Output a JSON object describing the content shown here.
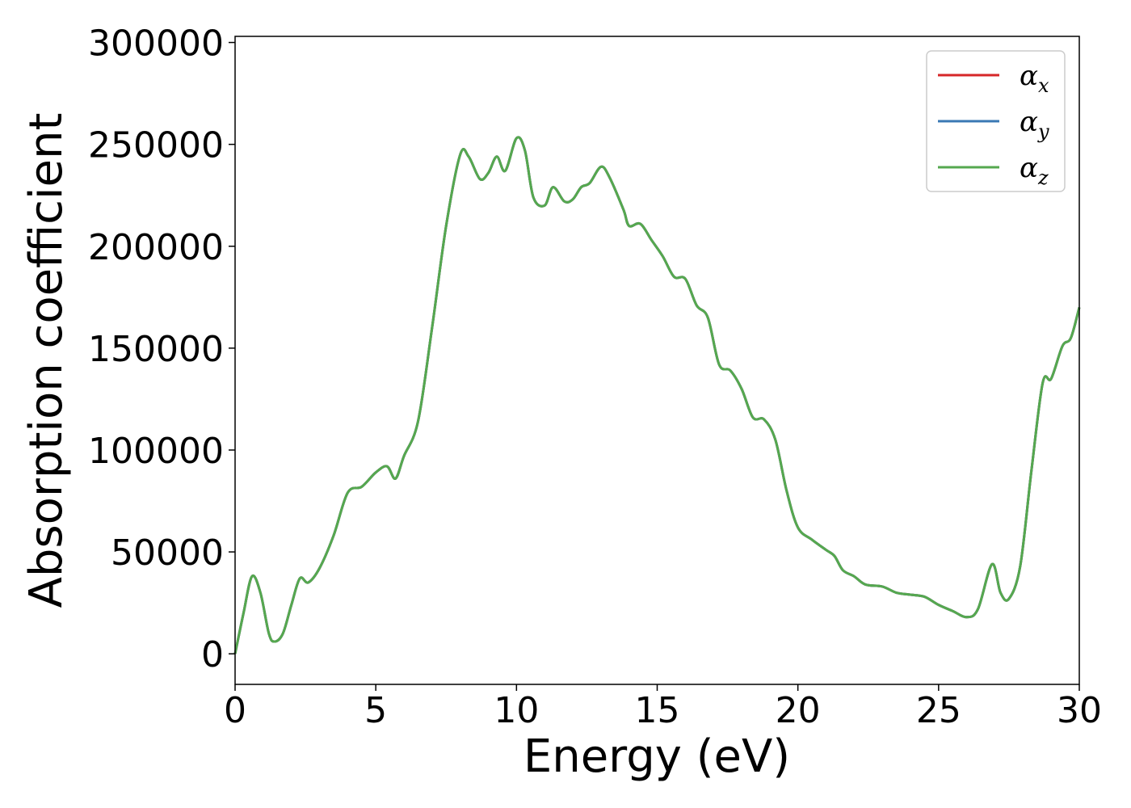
{
  "chart_data": {
    "type": "line",
    "xlabel": "Energy (eV)",
    "ylabel": "Absorption coefficient",
    "xlim": [
      0,
      30
    ],
    "ylim": [
      -15000,
      303000
    ],
    "x_ticks": [
      0,
      5,
      10,
      15,
      20,
      25,
      30
    ],
    "x_tick_labels": [
      "0",
      "5",
      "10",
      "15",
      "20",
      "25",
      "30"
    ],
    "y_ticks": [
      0,
      50000,
      100000,
      150000,
      200000,
      250000,
      300000
    ],
    "y_tick_labels": [
      "0",
      "50000",
      "100000",
      "150000",
      "200000",
      "250000",
      "300000"
    ],
    "grid": false,
    "legend_position": "top-right",
    "series": [
      {
        "name": "α",
        "subscript": "x",
        "color": "#d62728",
        "points": [
          [
            0,
            0
          ],
          [
            0.3,
            20000
          ],
          [
            0.6,
            38000
          ],
          [
            0.9,
            30000
          ],
          [
            1.2,
            10000
          ],
          [
            1.4,
            6000
          ],
          [
            1.7,
            10000
          ],
          [
            2.0,
            24000
          ],
          [
            2.3,
            37000
          ],
          [
            2.6,
            35000
          ],
          [
            3.0,
            42000
          ],
          [
            3.5,
            58000
          ],
          [
            4.0,
            79000
          ],
          [
            4.5,
            82000
          ],
          [
            5.0,
            89000
          ],
          [
            5.4,
            92000
          ],
          [
            5.7,
            86000
          ],
          [
            6.0,
            97000
          ],
          [
            6.5,
            114000
          ],
          [
            7.0,
            160000
          ],
          [
            7.5,
            210000
          ],
          [
            8.0,
            245000
          ],
          [
            8.3,
            244000
          ],
          [
            8.7,
            233000
          ],
          [
            9.0,
            236000
          ],
          [
            9.3,
            244000
          ],
          [
            9.6,
            237000
          ],
          [
            10.0,
            253000
          ],
          [
            10.3,
            247000
          ],
          [
            10.6,
            224000
          ],
          [
            11.0,
            220000
          ],
          [
            11.3,
            229000
          ],
          [
            11.7,
            222000
          ],
          [
            12.0,
            223000
          ],
          [
            12.3,
            229000
          ],
          [
            12.6,
            231000
          ],
          [
            13.0,
            239000
          ],
          [
            13.3,
            234000
          ],
          [
            13.8,
            218000
          ],
          [
            14.0,
            210000
          ],
          [
            14.4,
            211000
          ],
          [
            14.8,
            203000
          ],
          [
            15.2,
            195000
          ],
          [
            15.6,
            185000
          ],
          [
            16.0,
            184000
          ],
          [
            16.4,
            171000
          ],
          [
            16.8,
            165000
          ],
          [
            17.2,
            142000
          ],
          [
            17.6,
            139000
          ],
          [
            18.0,
            130000
          ],
          [
            18.4,
            116000
          ],
          [
            18.8,
            115000
          ],
          [
            19.2,
            105000
          ],
          [
            19.6,
            80000
          ],
          [
            20.0,
            62000
          ],
          [
            20.5,
            56000
          ],
          [
            21.0,
            51000
          ],
          [
            21.3,
            48000
          ],
          [
            21.6,
            41000
          ],
          [
            22.0,
            38000
          ],
          [
            22.4,
            34000
          ],
          [
            23.0,
            33000
          ],
          [
            23.5,
            30000
          ],
          [
            24.0,
            29000
          ],
          [
            24.5,
            28000
          ],
          [
            25.0,
            24000
          ],
          [
            25.5,
            21000
          ],
          [
            26.0,
            18000
          ],
          [
            26.4,
            22000
          ],
          [
            26.9,
            44000
          ],
          [
            27.2,
            30000
          ],
          [
            27.5,
            27000
          ],
          [
            27.9,
            43000
          ],
          [
            28.3,
            90000
          ],
          [
            28.7,
            133000
          ],
          [
            29.0,
            135000
          ],
          [
            29.4,
            151000
          ],
          [
            29.7,
            155000
          ],
          [
            30.0,
            170000
          ]
        ]
      },
      {
        "name": "α",
        "subscript": "y",
        "color": "#3a78b4",
        "points": [
          [
            0,
            0
          ],
          [
            0.3,
            20000
          ],
          [
            0.6,
            38000
          ],
          [
            0.9,
            30000
          ],
          [
            1.2,
            10000
          ],
          [
            1.4,
            6000
          ],
          [
            1.7,
            10000
          ],
          [
            2.0,
            24000
          ],
          [
            2.3,
            37000
          ],
          [
            2.6,
            35000
          ],
          [
            3.0,
            42000
          ],
          [
            3.5,
            58000
          ],
          [
            4.0,
            79000
          ],
          [
            4.5,
            82000
          ],
          [
            5.0,
            89000
          ],
          [
            5.4,
            92000
          ],
          [
            5.7,
            86000
          ],
          [
            6.0,
            97000
          ],
          [
            6.5,
            114000
          ],
          [
            7.0,
            160000
          ],
          [
            7.5,
            210000
          ],
          [
            8.0,
            245000
          ],
          [
            8.3,
            244000
          ],
          [
            8.7,
            233000
          ],
          [
            9.0,
            236000
          ],
          [
            9.3,
            244000
          ],
          [
            9.6,
            237000
          ],
          [
            10.0,
            253000
          ],
          [
            10.3,
            247000
          ],
          [
            10.6,
            224000
          ],
          [
            11.0,
            220000
          ],
          [
            11.3,
            229000
          ],
          [
            11.7,
            222000
          ],
          [
            12.0,
            223000
          ],
          [
            12.3,
            229000
          ],
          [
            12.6,
            231000
          ],
          [
            13.0,
            239000
          ],
          [
            13.3,
            234000
          ],
          [
            13.8,
            218000
          ],
          [
            14.0,
            210000
          ],
          [
            14.4,
            211000
          ],
          [
            14.8,
            203000
          ],
          [
            15.2,
            195000
          ],
          [
            15.6,
            185000
          ],
          [
            16.0,
            184000
          ],
          [
            16.4,
            171000
          ],
          [
            16.8,
            165000
          ],
          [
            17.2,
            142000
          ],
          [
            17.6,
            139000
          ],
          [
            18.0,
            130000
          ],
          [
            18.4,
            116000
          ],
          [
            18.8,
            115000
          ],
          [
            19.2,
            105000
          ],
          [
            19.6,
            80000
          ],
          [
            20.0,
            62000
          ],
          [
            20.5,
            56000
          ],
          [
            21.0,
            51000
          ],
          [
            21.3,
            48000
          ],
          [
            21.6,
            41000
          ],
          [
            22.0,
            38000
          ],
          [
            22.4,
            34000
          ],
          [
            23.0,
            33000
          ],
          [
            23.5,
            30000
          ],
          [
            24.0,
            29000
          ],
          [
            24.5,
            28000
          ],
          [
            25.0,
            24000
          ],
          [
            25.5,
            21000
          ],
          [
            26.0,
            18000
          ],
          [
            26.4,
            22000
          ],
          [
            26.9,
            44000
          ],
          [
            27.2,
            30000
          ],
          [
            27.5,
            27000
          ],
          [
            27.9,
            43000
          ],
          [
            28.3,
            90000
          ],
          [
            28.7,
            133000
          ],
          [
            29.0,
            135000
          ],
          [
            29.4,
            151000
          ],
          [
            29.7,
            155000
          ],
          [
            30.0,
            170000
          ]
        ]
      },
      {
        "name": "α",
        "subscript": "z",
        "color": "#55a84f",
        "points": [
          [
            0,
            0
          ],
          [
            0.3,
            20000
          ],
          [
            0.6,
            38000
          ],
          [
            0.9,
            30000
          ],
          [
            1.2,
            10000
          ],
          [
            1.4,
            6000
          ],
          [
            1.7,
            10000
          ],
          [
            2.0,
            24000
          ],
          [
            2.3,
            37000
          ],
          [
            2.6,
            35000
          ],
          [
            3.0,
            42000
          ],
          [
            3.5,
            58000
          ],
          [
            4.0,
            79000
          ],
          [
            4.5,
            82000
          ],
          [
            5.0,
            89000
          ],
          [
            5.4,
            92000
          ],
          [
            5.7,
            86000
          ],
          [
            6.0,
            97000
          ],
          [
            6.5,
            114000
          ],
          [
            7.0,
            160000
          ],
          [
            7.5,
            210000
          ],
          [
            8.0,
            245000
          ],
          [
            8.3,
            244000
          ],
          [
            8.7,
            233000
          ],
          [
            9.0,
            236000
          ],
          [
            9.3,
            244000
          ],
          [
            9.6,
            237000
          ],
          [
            10.0,
            253000
          ],
          [
            10.3,
            247000
          ],
          [
            10.6,
            224000
          ],
          [
            11.0,
            220000
          ],
          [
            11.3,
            229000
          ],
          [
            11.7,
            222000
          ],
          [
            12.0,
            223000
          ],
          [
            12.3,
            229000
          ],
          [
            12.6,
            231000
          ],
          [
            13.0,
            239000
          ],
          [
            13.3,
            234000
          ],
          [
            13.8,
            218000
          ],
          [
            14.0,
            210000
          ],
          [
            14.4,
            211000
          ],
          [
            14.8,
            203000
          ],
          [
            15.2,
            195000
          ],
          [
            15.6,
            185000
          ],
          [
            16.0,
            184000
          ],
          [
            16.4,
            171000
          ],
          [
            16.8,
            165000
          ],
          [
            17.2,
            142000
          ],
          [
            17.6,
            139000
          ],
          [
            18.0,
            130000
          ],
          [
            18.4,
            116000
          ],
          [
            18.8,
            115000
          ],
          [
            19.2,
            105000
          ],
          [
            19.6,
            80000
          ],
          [
            20.0,
            62000
          ],
          [
            20.5,
            56000
          ],
          [
            21.0,
            51000
          ],
          [
            21.3,
            48000
          ],
          [
            21.6,
            41000
          ],
          [
            22.0,
            38000
          ],
          [
            22.4,
            34000
          ],
          [
            23.0,
            33000
          ],
          [
            23.5,
            30000
          ],
          [
            24.0,
            29000
          ],
          [
            24.5,
            28000
          ],
          [
            25.0,
            24000
          ],
          [
            25.5,
            21000
          ],
          [
            26.0,
            18000
          ],
          [
            26.4,
            22000
          ],
          [
            26.9,
            44000
          ],
          [
            27.2,
            30000
          ],
          [
            27.5,
            27000
          ],
          [
            27.9,
            43000
          ],
          [
            28.3,
            90000
          ],
          [
            28.7,
            133000
          ],
          [
            29.0,
            135000
          ],
          [
            29.4,
            151000
          ],
          [
            29.7,
            155000
          ],
          [
            30.0,
            170000
          ]
        ]
      }
    ]
  }
}
